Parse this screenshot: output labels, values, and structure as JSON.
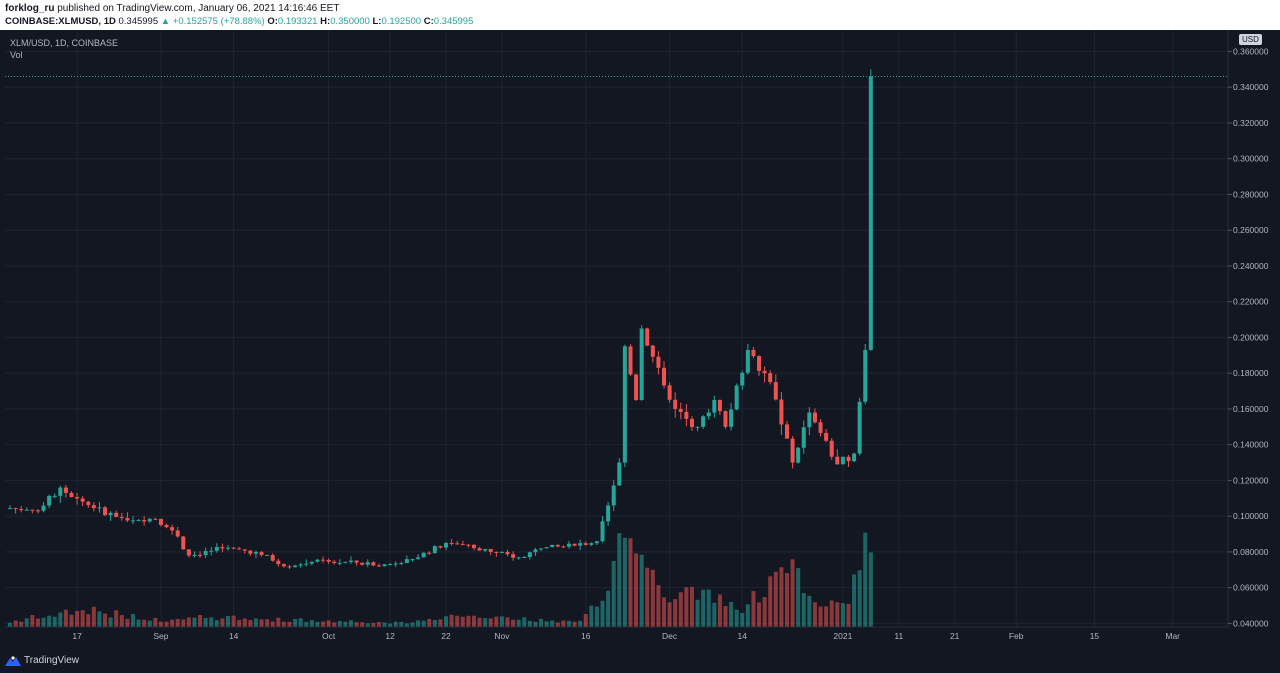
{
  "header": {
    "author": "forklog_ru",
    "published_text": "published on TradingView.com, January 06, 2021 14:16:46 EET",
    "symbol_line": "COINBASE:XLMUSD, 1D",
    "last": "0.345995",
    "change": "▲ +0.152575 (+78.88%)",
    "open_label": "O:",
    "open": "0.193321",
    "high_label": "H:",
    "high": "0.350000",
    "low_label": "L:",
    "low": "0.192500",
    "close_label": "C:",
    "close": "0.345995"
  },
  "legend": {
    "pair": "XLM/USD, 1D, COINBASE",
    "volume": "Vol"
  },
  "axis": {
    "currency": "USD"
  },
  "footer": {
    "brand": "TradingView"
  },
  "colors": {
    "up": "#26a69a",
    "down": "#ef5350",
    "background": "#131722",
    "grid": "#1f2433",
    "text": "#b2b5be"
  },
  "chart_data": {
    "type": "candlestick",
    "symbol": "COINBASE:XLMUSD",
    "interval": "1D",
    "ylim": [
      0.038,
      0.372
    ],
    "y_ticks": [
      "0.040000",
      "0.060000",
      "0.080000",
      "0.100000",
      "0.120000",
      "0.140000",
      "0.160000",
      "0.180000",
      "0.200000",
      "0.220000",
      "0.240000",
      "0.260000",
      "0.280000",
      "0.300000",
      "0.320000",
      "0.340000",
      "0.360000"
    ],
    "x_start_date": "2020-08-05",
    "x_end_date": "2021-03-10",
    "x_ticks": [
      {
        "label": "17",
        "date": "2020-08-17"
      },
      {
        "label": "Sep",
        "date": "2020-09-01"
      },
      {
        "label": "14",
        "date": "2020-09-14"
      },
      {
        "label": "Oct",
        "date": "2020-10-01"
      },
      {
        "label": "12",
        "date": "2020-10-12"
      },
      {
        "label": "22",
        "date": "2020-10-22"
      },
      {
        "label": "Nov",
        "date": "2020-11-01"
      },
      {
        "label": "16",
        "date": "2020-11-16"
      },
      {
        "label": "Dec",
        "date": "2020-12-01"
      },
      {
        "label": "14",
        "date": "2020-12-14"
      },
      {
        "label": "2021",
        "date": "2021-01-01"
      },
      {
        "label": "11",
        "date": "2021-01-11"
      },
      {
        "label": "21",
        "date": "2021-01-21"
      },
      {
        "label": "Feb",
        "date": "2021-02-01"
      },
      {
        "label": "15",
        "date": "2021-02-15"
      },
      {
        "label": "Mar",
        "date": "2021-03-01"
      }
    ],
    "price_line": 0.345995,
    "anchors": [
      {
        "date": "2020-08-05",
        "close": 0.1045
      },
      {
        "date": "2020-08-10",
        "close": 0.103
      },
      {
        "date": "2020-08-14",
        "close": 0.116
      },
      {
        "date": "2020-08-20",
        "close": 0.1045
      },
      {
        "date": "2020-08-25",
        "close": 0.099
      },
      {
        "date": "2020-08-31",
        "close": 0.0985
      },
      {
        "date": "2020-09-03",
        "close": 0.092
      },
      {
        "date": "2020-09-06",
        "close": 0.078
      },
      {
        "date": "2020-09-12",
        "close": 0.082
      },
      {
        "date": "2020-09-18",
        "close": 0.08
      },
      {
        "date": "2020-09-24",
        "close": 0.0715
      },
      {
        "date": "2020-09-28",
        "close": 0.0745
      },
      {
        "date": "2020-10-06",
        "close": 0.074
      },
      {
        "date": "2020-10-10",
        "close": 0.072
      },
      {
        "date": "2020-10-16",
        "close": 0.076
      },
      {
        "date": "2020-10-22",
        "close": 0.085
      },
      {
        "date": "2020-10-26",
        "close": 0.084
      },
      {
        "date": "2020-10-30",
        "close": 0.08
      },
      {
        "date": "2020-11-04",
        "close": 0.077
      },
      {
        "date": "2020-11-08",
        "close": 0.082
      },
      {
        "date": "2020-11-14",
        "close": 0.0835
      },
      {
        "date": "2020-11-18",
        "close": 0.086
      },
      {
        "date": "2020-11-20",
        "close": 0.106
      },
      {
        "date": "2020-11-22",
        "close": 0.13
      },
      {
        "date": "2020-11-23",
        "close": 0.195
      },
      {
        "date": "2020-11-25",
        "close": 0.165
      },
      {
        "date": "2020-11-26",
        "close": 0.205
      },
      {
        "date": "2020-11-29",
        "close": 0.183
      },
      {
        "date": "2020-12-02",
        "close": 0.16
      },
      {
        "date": "2020-12-06",
        "close": 0.15
      },
      {
        "date": "2020-12-09",
        "close": 0.165
      },
      {
        "date": "2020-12-11",
        "close": 0.15
      },
      {
        "date": "2020-12-15",
        "close": 0.193
      },
      {
        "date": "2020-12-19",
        "close": 0.175
      },
      {
        "date": "2020-12-23",
        "close": 0.13
      },
      {
        "date": "2020-12-26",
        "close": 0.158
      },
      {
        "date": "2020-12-31",
        "close": 0.129
      },
      {
        "date": "2021-01-03",
        "close": 0.135
      },
      {
        "date": "2021-01-04",
        "close": 0.164
      },
      {
        "date": "2021-01-05",
        "close": 0.193
      },
      {
        "date": "2021-01-06",
        "close": 0.345995
      }
    ],
    "volume_profile": [
      {
        "date": "2020-08-05",
        "v": 5
      },
      {
        "date": "2020-08-17",
        "v": 18
      },
      {
        "date": "2020-09-01",
        "v": 7
      },
      {
        "date": "2020-09-06",
        "v": 10
      },
      {
        "date": "2020-10-15",
        "v": 4
      },
      {
        "date": "2020-10-22",
        "v": 11
      },
      {
        "date": "2020-11-15",
        "v": 5
      },
      {
        "date": "2020-11-20",
        "v": 35
      },
      {
        "date": "2020-11-22",
        "v": 80
      },
      {
        "date": "2020-11-24",
        "v": 105
      },
      {
        "date": "2020-11-26",
        "v": 65
      },
      {
        "date": "2020-11-30",
        "v": 30
      },
      {
        "date": "2020-12-09",
        "v": 32
      },
      {
        "date": "2020-12-14",
        "v": 20
      },
      {
        "date": "2020-12-17",
        "v": 32
      },
      {
        "date": "2020-12-23",
        "v": 65
      },
      {
        "date": "2020-12-27",
        "v": 22
      },
      {
        "date": "2021-01-02",
        "v": 20
      },
      {
        "date": "2021-01-04",
        "v": 78
      },
      {
        "date": "2021-01-05",
        "v": 92
      },
      {
        "date": "2021-01-06",
        "v": 88
      }
    ]
  }
}
